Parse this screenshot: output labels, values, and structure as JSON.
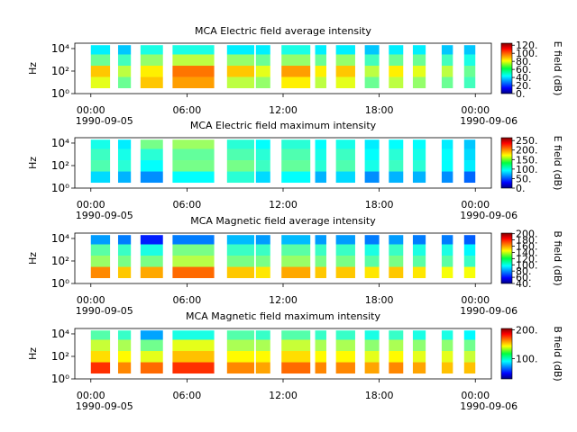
{
  "chart_data": [
    {
      "type": "spectrogram",
      "title": "MCA  Electric field average intensity",
      "ylabel": "Hz",
      "colorbar_label": "E field (dB)",
      "xlim": [
        -1,
        25
      ],
      "xticks": [
        {
          "value": 0,
          "label": "00:00",
          "date": "1990-09-05"
        },
        {
          "value": 6,
          "label": "06:00"
        },
        {
          "value": 12,
          "label": "12:00"
        },
        {
          "value": 18,
          "label": "18:00"
        },
        {
          "value": 24,
          "label": "00:00",
          "date": "1990-09-06"
        }
      ],
      "log_y": true,
      "ylim": [
        1,
        30000
      ],
      "yticks": [
        {
          "value": 1,
          "label": "10⁰"
        },
        {
          "value": 100,
          "label": "10²"
        },
        {
          "value": 10000,
          "label": "10⁴"
        }
      ],
      "freq_edges": [
        3,
        30,
        300,
        3000,
        20000
      ],
      "segments": [
        [
          0.0,
          1.2
        ],
        [
          1.7,
          2.5
        ],
        [
          3.1,
          4.5
        ],
        [
          5.1,
          7.7
        ],
        [
          8.5,
          10.2
        ],
        [
          10.3,
          11.2
        ],
        [
          11.9,
          13.7
        ],
        [
          14.0,
          14.7
        ],
        [
          15.3,
          16.5
        ],
        [
          17.1,
          18.0
        ],
        [
          18.6,
          19.5
        ],
        [
          20.1,
          20.9
        ],
        [
          21.9,
          22.6
        ],
        [
          23.3,
          24.0
        ]
      ],
      "values": [
        [
          75,
          60,
          85,
          90,
          70,
          65,
          80,
          70,
          75,
          60,
          70,
          65,
          60,
          55
        ],
        [
          85,
          70,
          80,
          95,
          85,
          75,
          90,
          80,
          85,
          70,
          80,
          75,
          70,
          60
        ],
        [
          60,
          55,
          65,
          70,
          65,
          60,
          65,
          60,
          65,
          55,
          60,
          60,
          55,
          50
        ],
        [
          45,
          40,
          50,
          50,
          45,
          45,
          50,
          45,
          45,
          40,
          45,
          45,
          40,
          40
        ]
      ],
      "colormap": "jet",
      "clim": [
        0,
        125
      ],
      "cticks": [
        {
          "value": 0,
          "label": "0."
        },
        {
          "value": 20,
          "label": "20."
        },
        {
          "value": 40,
          "label": "40."
        },
        {
          "value": 60,
          "label": "60."
        },
        {
          "value": 80,
          "label": "80."
        },
        {
          "value": 100,
          "label": "100."
        },
        {
          "value": 120,
          "label": "120."
        }
      ]
    },
    {
      "type": "spectrogram",
      "title": "MCA  Electric field maximum intensity",
      "ylabel": "Hz",
      "colorbar_label": "E field (dB)",
      "xlim": [
        -1,
        25
      ],
      "xticks": [
        {
          "value": 0,
          "label": "00:00",
          "date": "1990-09-05"
        },
        {
          "value": 6,
          "label": "06:00"
        },
        {
          "value": 12,
          "label": "12:00"
        },
        {
          "value": 18,
          "label": "18:00"
        },
        {
          "value": 24,
          "label": "00:00",
          "date": "1990-09-06"
        }
      ],
      "log_y": true,
      "ylim": [
        1,
        30000
      ],
      "yticks": [
        {
          "value": 1,
          "label": "10⁰"
        },
        {
          "value": 100,
          "label": "10²"
        },
        {
          "value": 10000,
          "label": "10⁴"
        }
      ],
      "freq_edges": [
        3,
        30,
        300,
        3000,
        20000
      ],
      "segments": [
        [
          0.0,
          1.2
        ],
        [
          1.7,
          2.5
        ],
        [
          3.1,
          4.5
        ],
        [
          5.1,
          7.7
        ],
        [
          8.5,
          10.2
        ],
        [
          10.3,
          11.2
        ],
        [
          11.9,
          13.7
        ],
        [
          14.0,
          14.7
        ],
        [
          15.3,
          16.5
        ],
        [
          17.1,
          18.0
        ],
        [
          18.6,
          19.5
        ],
        [
          20.1,
          20.9
        ],
        [
          21.9,
          22.6
        ],
        [
          23.3,
          24.0
        ]
      ],
      "values": [
        [
          90,
          80,
          70,
          100,
          110,
          90,
          100,
          80,
          90,
          70,
          80,
          80,
          70,
          60
        ],
        [
          120,
          110,
          100,
          130,
          130,
          115,
          125,
          110,
          120,
          105,
          115,
          110,
          100,
          95
        ],
        [
          115,
          105,
          110,
          125,
          120,
          110,
          120,
          105,
          115,
          100,
          110,
          105,
          100,
          90
        ],
        [
          105,
          95,
          130,
          140,
          110,
          100,
          110,
          100,
          105,
          95,
          100,
          100,
          95,
          85
        ]
      ],
      "colormap": "jet",
      "clim": [
        0,
        265
      ],
      "cticks": [
        {
          "value": 0,
          "label": "0."
        },
        {
          "value": 50,
          "label": "50."
        },
        {
          "value": 100,
          "label": "100."
        },
        {
          "value": 150,
          "label": "150."
        },
        {
          "value": 200,
          "label": "200."
        },
        {
          "value": 250,
          "label": "250."
        }
      ]
    },
    {
      "type": "spectrogram",
      "title": "MCA  Magnetic field average intensity",
      "ylabel": "Hz",
      "colorbar_label": "B field (dB)",
      "xlim": [
        -1,
        25
      ],
      "xticks": [
        {
          "value": 0,
          "label": "00:00",
          "date": "1990-09-05"
        },
        {
          "value": 6,
          "label": "06:00"
        },
        {
          "value": 12,
          "label": "12:00"
        },
        {
          "value": 18,
          "label": "18:00"
        },
        {
          "value": 24,
          "label": "00:00",
          "date": "1990-09-06"
        }
      ],
      "log_y": true,
      "ylim": [
        1,
        30000
      ],
      "yticks": [
        {
          "value": 1,
          "label": "10⁰"
        },
        {
          "value": 100,
          "label": "10²"
        },
        {
          "value": 10000,
          "label": "10⁴"
        }
      ],
      "freq_edges": [
        3,
        30,
        300,
        3000,
        20000
      ],
      "segments": [
        [
          0.0,
          1.2
        ],
        [
          1.7,
          2.5
        ],
        [
          3.1,
          4.5
        ],
        [
          5.1,
          7.7
        ],
        [
          8.5,
          10.2
        ],
        [
          10.3,
          11.2
        ],
        [
          11.9,
          13.7
        ],
        [
          14.0,
          14.7
        ],
        [
          15.3,
          16.5
        ],
        [
          17.1,
          18.0
        ],
        [
          18.6,
          19.5
        ],
        [
          20.1,
          20.9
        ],
        [
          21.9,
          22.6
        ],
        [
          23.3,
          24.0
        ]
      ],
      "values": [
        [
          160,
          150,
          155,
          165,
          150,
          145,
          155,
          150,
          150,
          145,
          150,
          145,
          140,
          140
        ],
        [
          125,
          120,
          120,
          130,
          120,
          120,
          125,
          120,
          120,
          115,
          120,
          115,
          115,
          110
        ],
        [
          115,
          110,
          105,
          120,
          110,
          110,
          115,
          110,
          110,
          105,
          110,
          105,
          105,
          100
        ],
        [
          85,
          80,
          65,
          80,
          90,
          85,
          90,
          85,
          85,
          80,
          85,
          80,
          80,
          75
        ]
      ],
      "colormap": "jet",
      "clim": [
        40,
        202
      ],
      "cticks": [
        {
          "value": 40,
          "label": "40."
        },
        {
          "value": 60,
          "label": "60."
        },
        {
          "value": 80,
          "label": "80."
        },
        {
          "value": 100,
          "label": "100."
        },
        {
          "value": 120,
          "label": "120."
        },
        {
          "value": 140,
          "label": "140."
        },
        {
          "value": 160,
          "label": "160."
        },
        {
          "value": 180,
          "label": "180."
        },
        {
          "value": 200,
          "label": "200."
        }
      ]
    },
    {
      "type": "spectrogram",
      "title": "MCA  Magnetic field maximum intensity",
      "ylabel": "Hz",
      "colorbar_label": "B field (dB)",
      "xlim": [
        -1,
        25
      ],
      "xticks": [
        {
          "value": 0,
          "label": "00:00",
          "date": "1990-09-05"
        },
        {
          "value": 6,
          "label": "06:00"
        },
        {
          "value": 12,
          "label": "12:00"
        },
        {
          "value": 18,
          "label": "18:00"
        },
        {
          "value": 24,
          "label": "00:00",
          "date": "1990-09-06"
        }
      ],
      "log_y": true,
      "ylim": [
        1,
        30000
      ],
      "yticks": [
        {
          "value": 1,
          "label": "10⁰"
        },
        {
          "value": 100,
          "label": "10²"
        },
        {
          "value": 10000,
          "label": "10⁴"
        }
      ],
      "freq_edges": [
        3,
        30,
        300,
        3000,
        20000
      ],
      "segments": [
        [
          0.0,
          1.2
        ],
        [
          1.7,
          2.5
        ],
        [
          3.1,
          4.5
        ],
        [
          5.1,
          7.7
        ],
        [
          8.5,
          10.2
        ],
        [
          10.3,
          11.2
        ],
        [
          11.9,
          13.7
        ],
        [
          14.0,
          14.7
        ],
        [
          15.3,
          16.5
        ],
        [
          17.1,
          18.0
        ],
        [
          18.6,
          19.5
        ],
        [
          20.1,
          20.9
        ],
        [
          21.9,
          22.6
        ],
        [
          23.3,
          24.0
        ]
      ],
      "values": [
        [
          175,
          160,
          165,
          175,
          160,
          155,
          165,
          160,
          160,
          155,
          160,
          155,
          150,
          150
        ],
        [
          145,
          140,
          135,
          150,
          140,
          140,
          145,
          140,
          140,
          135,
          140,
          135,
          135,
          130
        ],
        [
          130,
          125,
          115,
          135,
          125,
          125,
          130,
          125,
          125,
          120,
          125,
          120,
          120,
          115
        ],
        [
          110,
          105,
          80,
          100,
          110,
          105,
          110,
          105,
          105,
          100,
          105,
          100,
          100,
          95
        ]
      ],
      "colormap": "jet",
      "clim": [
        30,
        205
      ],
      "cticks": [
        {
          "value": 100,
          "label": "100."
        },
        {
          "value": 200,
          "label": "200."
        }
      ]
    }
  ]
}
